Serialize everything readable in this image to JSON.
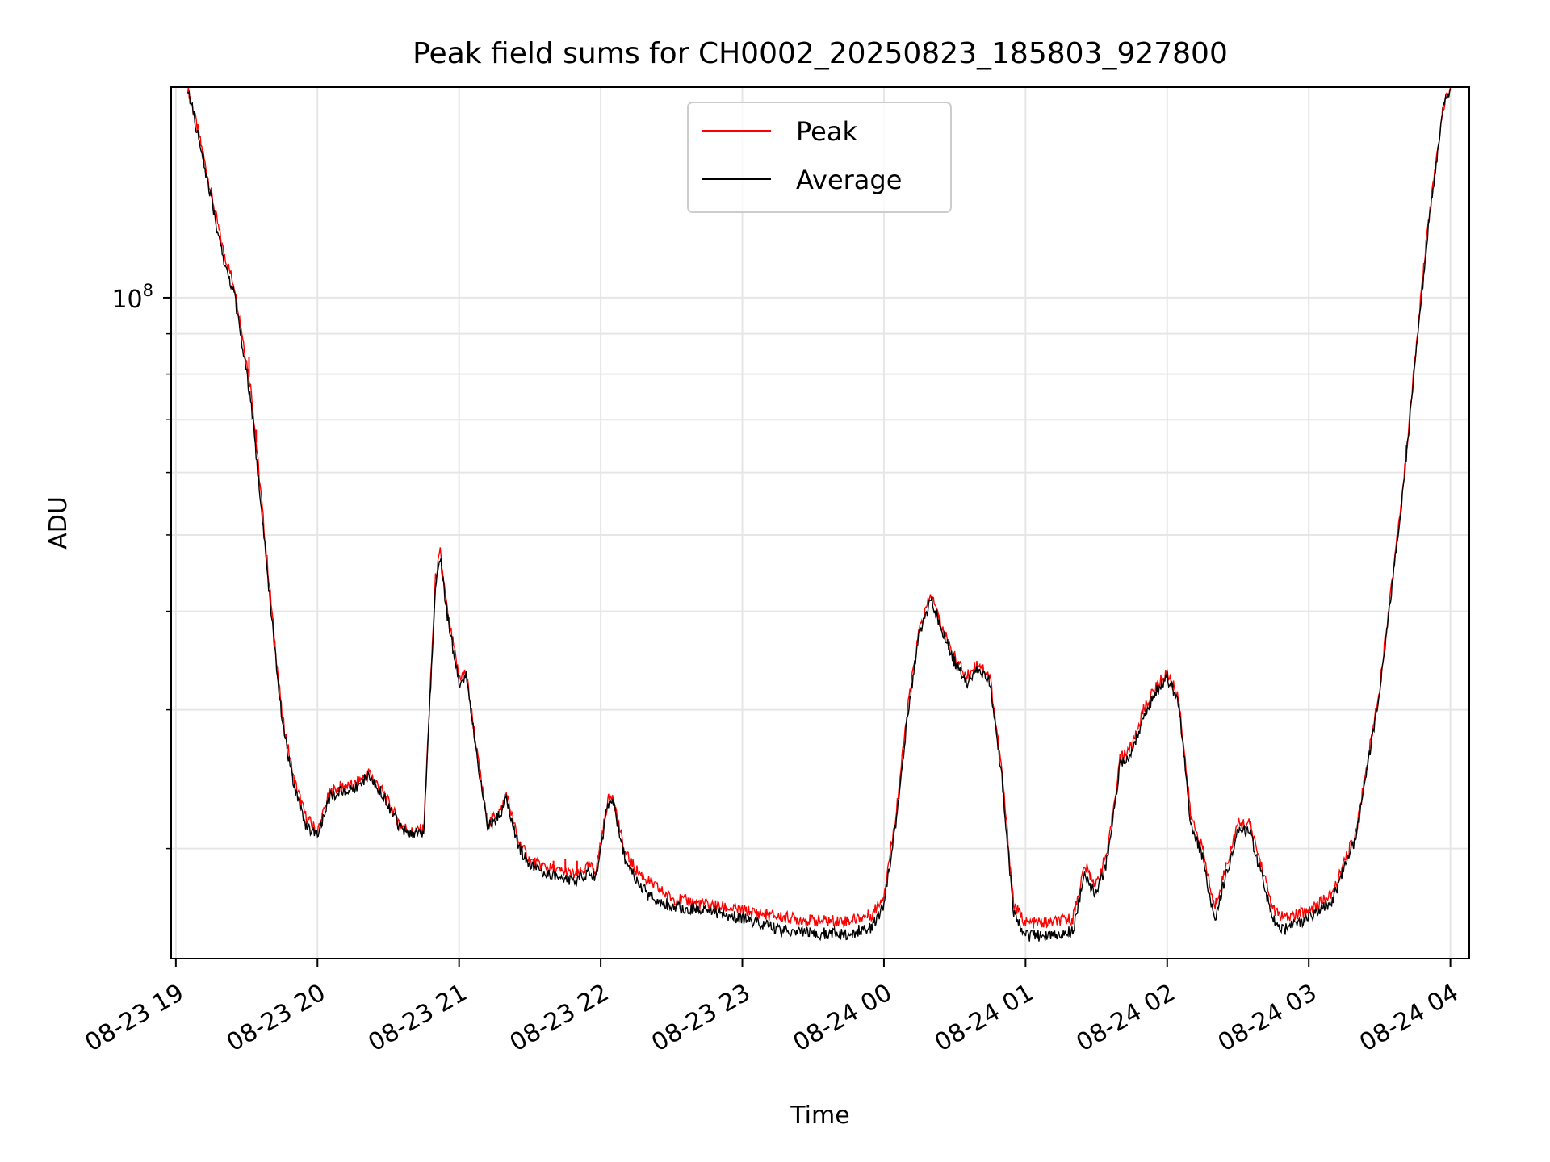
{
  "chart_data": {
    "type": "line",
    "title": "Peak field sums for CH0002_20250823_185803_927800",
    "xlabel": "Time",
    "ylabel": "ADU",
    "y_scale": "log",
    "ylim": [
      14500000,
      185000000
    ],
    "xlim": [
      "2025-08-23 18:58:00",
      "2025-08-24 04:08:00"
    ],
    "grid": true,
    "grid_which": "major and minor",
    "legend_position": "upper center",
    "x_ticks": [
      "08-23 19",
      "08-23 20",
      "08-23 21",
      "08-23 22",
      "08-23 23",
      "08-24 00",
      "08-24 01",
      "08-24 02",
      "08-24 03",
      "08-24 04"
    ],
    "x_tick_times": [
      "2025-08-23 19:00",
      "2025-08-23 20:00",
      "2025-08-23 21:00",
      "2025-08-23 22:00",
      "2025-08-23 23:00",
      "2025-08-24 00:00",
      "2025-08-24 01:00",
      "2025-08-24 02:00",
      "2025-08-24 03:00",
      "2025-08-24 04:00"
    ],
    "x_tick_rotation": 30,
    "y_major_ticks": [
      {
        "value": 100000000,
        "base": "10",
        "exp": "8"
      }
    ],
    "y_minor_ticks": [
      20000000,
      30000000,
      40000000,
      50000000,
      60000000,
      70000000,
      80000000,
      90000000
    ],
    "series": [
      {
        "name": "Peak",
        "color": "#ff0000",
        "line_width": 1,
        "points": [
          [
            "2025-08-23 19:05",
            185000000
          ],
          [
            "2025-08-23 19:10",
            160000000
          ],
          [
            "2025-08-23 19:20",
            115000000
          ],
          [
            "2025-08-23 19:25",
            103000000
          ],
          [
            "2025-08-23 19:32",
            76000000
          ],
          [
            "2025-08-23 19:40",
            42000000
          ],
          [
            "2025-08-23 19:45",
            29500000
          ],
          [
            "2025-08-23 19:50",
            24500000
          ],
          [
            "2025-08-23 19:55",
            22000000
          ],
          [
            "2025-08-23 20:00",
            21000000
          ],
          [
            "2025-08-23 20:05",
            23500000
          ],
          [
            "2025-08-23 20:10",
            24000000
          ],
          [
            "2025-08-23 20:15",
            24000000
          ],
          [
            "2025-08-23 20:22",
            25000000
          ],
          [
            "2025-08-23 20:28",
            23500000
          ],
          [
            "2025-08-23 20:35",
            21500000
          ],
          [
            "2025-08-23 20:40",
            21000000
          ],
          [
            "2025-08-23 20:45",
            21200000
          ],
          [
            "2025-08-23 20:50",
            44000000
          ],
          [
            "2025-08-23 20:52",
            47500000
          ],
          [
            "2025-08-23 20:55",
            40000000
          ],
          [
            "2025-08-23 21:00",
            33000000
          ],
          [
            "2025-08-23 21:03",
            33500000
          ],
          [
            "2025-08-23 21:08",
            26000000
          ],
          [
            "2025-08-23 21:12",
            21500000
          ],
          [
            "2025-08-23 21:18",
            22500000
          ],
          [
            "2025-08-23 21:20",
            23500000
          ],
          [
            "2025-08-23 21:25",
            20500000
          ],
          [
            "2025-08-23 21:30",
            19300000
          ],
          [
            "2025-08-23 21:40",
            18800000
          ],
          [
            "2025-08-23 21:50",
            18500000
          ],
          [
            "2025-08-23 21:55",
            19000000
          ],
          [
            "2025-08-23 21:58",
            18800000
          ],
          [
            "2025-08-23 22:03",
            23000000
          ],
          [
            "2025-08-23 22:05",
            23500000
          ],
          [
            "2025-08-23 22:10",
            19800000
          ],
          [
            "2025-08-23 22:15",
            18800000
          ],
          [
            "2025-08-23 22:20",
            18200000
          ],
          [
            "2025-08-23 22:30",
            17300000
          ],
          [
            "2025-08-23 22:45",
            17000000
          ],
          [
            "2025-08-23 23:00",
            16700000
          ],
          [
            "2025-08-23 23:15",
            16400000
          ],
          [
            "2025-08-23 23:30",
            16200000
          ],
          [
            "2025-08-23 23:45",
            16200000
          ],
          [
            "2025-08-23 23:55",
            16500000
          ],
          [
            "2025-08-24 00:00",
            17500000
          ],
          [
            "2025-08-24 00:05",
            22000000
          ],
          [
            "2025-08-24 00:10",
            30000000
          ],
          [
            "2025-08-24 00:15",
            38000000
          ],
          [
            "2025-08-24 00:20",
            42000000
          ],
          [
            "2025-08-24 00:25",
            38000000
          ],
          [
            "2025-08-24 00:30",
            35000000
          ],
          [
            "2025-08-24 00:35",
            33000000
          ],
          [
            "2025-08-24 00:40",
            34500000
          ],
          [
            "2025-08-24 00:45",
            33000000
          ],
          [
            "2025-08-24 00:50",
            25000000
          ],
          [
            "2025-08-24 00:55",
            17000000
          ],
          [
            "2025-08-24 01:00",
            16100000
          ],
          [
            "2025-08-24 01:10",
            16100000
          ],
          [
            "2025-08-24 01:20",
            16300000
          ],
          [
            "2025-08-24 01:25",
            19000000
          ],
          [
            "2025-08-24 01:30",
            18000000
          ],
          [
            "2025-08-24 01:35",
            20000000
          ],
          [
            "2025-08-24 01:40",
            26000000
          ],
          [
            "2025-08-24 01:45",
            27000000
          ],
          [
            "2025-08-24 01:50",
            30000000
          ],
          [
            "2025-08-24 01:55",
            32000000
          ],
          [
            "2025-08-24 02:00",
            33500000
          ],
          [
            "2025-08-24 02:05",
            31000000
          ],
          [
            "2025-08-24 02:10",
            22000000
          ],
          [
            "2025-08-24 02:15",
            20000000
          ],
          [
            "2025-08-24 02:20",
            16800000
          ],
          [
            "2025-08-24 02:25",
            19000000
          ],
          [
            "2025-08-24 02:30",
            21500000
          ],
          [
            "2025-08-24 02:35",
            21500000
          ],
          [
            "2025-08-24 02:40",
            19000000
          ],
          [
            "2025-08-24 02:45",
            16700000
          ],
          [
            "2025-08-24 02:50",
            16300000
          ],
          [
            "2025-08-24 03:00",
            16700000
          ],
          [
            "2025-08-24 03:10",
            17500000
          ],
          [
            "2025-08-24 03:20",
            21000000
          ],
          [
            "2025-08-24 03:30",
            32000000
          ],
          [
            "2025-08-24 03:40",
            58000000
          ],
          [
            "2025-08-24 03:50",
            120000000
          ],
          [
            "2025-08-24 03:57",
            175000000
          ],
          [
            "2025-08-24 04:00",
            185000000
          ]
        ],
        "spikes": [
          [
            "2025-08-23 19:25",
            103000000
          ],
          [
            "2025-08-23 19:31",
            84000000
          ],
          [
            "2025-08-23 19:34",
            68000000
          ],
          [
            "2025-08-23 21:40",
            19300000
          ],
          [
            "2025-08-23 21:45",
            19400000
          ],
          [
            "2025-08-23 21:50",
            19300000
          ],
          [
            "2025-08-23 21:55",
            19200000
          ]
        ]
      },
      {
        "name": "Average",
        "color": "#000000",
        "line_width": 1,
        "points": [
          [
            "2025-08-23 19:05",
            185000000
          ],
          [
            "2025-08-23 19:10",
            158000000
          ],
          [
            "2025-08-23 19:20",
            112000000
          ],
          [
            "2025-08-23 19:25",
            100000000
          ],
          [
            "2025-08-23 19:32",
            73000000
          ],
          [
            "2025-08-23 19:40",
            41000000
          ],
          [
            "2025-08-23 19:45",
            29000000
          ],
          [
            "2025-08-23 19:50",
            24000000
          ],
          [
            "2025-08-23 19:55",
            21500000
          ],
          [
            "2025-08-23 20:00",
            20700000
          ],
          [
            "2025-08-23 20:05",
            23200000
          ],
          [
            "2025-08-23 20:10",
            23700000
          ],
          [
            "2025-08-23 20:15",
            23800000
          ],
          [
            "2025-08-23 20:22",
            24800000
          ],
          [
            "2025-08-23 20:28",
            23300000
          ],
          [
            "2025-08-23 20:35",
            21300000
          ],
          [
            "2025-08-23 20:40",
            20800000
          ],
          [
            "2025-08-23 20:45",
            21000000
          ],
          [
            "2025-08-23 20:50",
            43500000
          ],
          [
            "2025-08-23 20:52",
            47000000
          ],
          [
            "2025-08-23 20:55",
            39500000
          ],
          [
            "2025-08-23 21:00",
            32500000
          ],
          [
            "2025-08-23 21:03",
            33000000
          ],
          [
            "2025-08-23 21:08",
            25700000
          ],
          [
            "2025-08-23 21:12",
            21300000
          ],
          [
            "2025-08-23 21:18",
            22300000
          ],
          [
            "2025-08-23 21:20",
            23300000
          ],
          [
            "2025-08-23 21:25",
            20200000
          ],
          [
            "2025-08-23 21:30",
            19000000
          ],
          [
            "2025-08-23 21:40",
            18500000
          ],
          [
            "2025-08-23 21:50",
            18200000
          ],
          [
            "2025-08-23 21:55",
            18700000
          ],
          [
            "2025-08-23 21:58",
            18400000
          ],
          [
            "2025-08-23 22:03",
            22700000
          ],
          [
            "2025-08-23 22:05",
            23200000
          ],
          [
            "2025-08-23 22:10",
            19500000
          ],
          [
            "2025-08-23 22:15",
            18300000
          ],
          [
            "2025-08-23 22:20",
            17500000
          ],
          [
            "2025-08-23 22:30",
            16900000
          ],
          [
            "2025-08-23 22:45",
            16700000
          ],
          [
            "2025-08-23 23:00",
            16300000
          ],
          [
            "2025-08-23 23:15",
            15800000
          ],
          [
            "2025-08-23 23:30",
            15600000
          ],
          [
            "2025-08-23 23:45",
            15600000
          ],
          [
            "2025-08-23 23:55",
            15900000
          ],
          [
            "2025-08-24 00:00",
            17000000
          ],
          [
            "2025-08-24 00:05",
            21500000
          ],
          [
            "2025-08-24 00:10",
            29500000
          ],
          [
            "2025-08-24 00:15",
            37500000
          ],
          [
            "2025-08-24 00:20",
            41500000
          ],
          [
            "2025-08-24 00:25",
            37500000
          ],
          [
            "2025-08-24 00:30",
            34500000
          ],
          [
            "2025-08-24 00:35",
            32500000
          ],
          [
            "2025-08-24 00:40",
            34000000
          ],
          [
            "2025-08-24 00:45",
            32500000
          ],
          [
            "2025-08-24 00:50",
            24500000
          ],
          [
            "2025-08-24 00:55",
            16500000
          ],
          [
            "2025-08-24 01:00",
            15500000
          ],
          [
            "2025-08-24 01:10",
            15500000
          ],
          [
            "2025-08-24 01:20",
            15700000
          ],
          [
            "2025-08-24 01:25",
            18500000
          ],
          [
            "2025-08-24 01:30",
            17500000
          ],
          [
            "2025-08-24 01:35",
            19500000
          ],
          [
            "2025-08-24 01:40",
            25500000
          ],
          [
            "2025-08-24 01:45",
            26500000
          ],
          [
            "2025-08-24 01:50",
            29500000
          ],
          [
            "2025-08-24 01:55",
            31500000
          ],
          [
            "2025-08-24 02:00",
            33000000
          ],
          [
            "2025-08-24 02:05",
            30500000
          ],
          [
            "2025-08-24 02:10",
            21500000
          ],
          [
            "2025-08-24 02:15",
            19500000
          ],
          [
            "2025-08-24 02:20",
            16200000
          ],
          [
            "2025-08-24 02:25",
            18500000
          ],
          [
            "2025-08-24 02:30",
            21000000
          ],
          [
            "2025-08-24 02:35",
            21000000
          ],
          [
            "2025-08-24 02:40",
            18500000
          ],
          [
            "2025-08-24 02:45",
            16200000
          ],
          [
            "2025-08-24 02:50",
            15800000
          ],
          [
            "2025-08-24 03:00",
            16300000
          ],
          [
            "2025-08-24 03:10",
            17200000
          ],
          [
            "2025-08-24 03:20",
            20700000
          ],
          [
            "2025-08-24 03:30",
            31500000
          ],
          [
            "2025-08-24 03:40",
            57000000
          ],
          [
            "2025-08-24 03:50",
            118000000
          ],
          [
            "2025-08-24 03:57",
            175000000
          ],
          [
            "2025-08-24 04:00",
            185000000
          ]
        ]
      }
    ]
  }
}
